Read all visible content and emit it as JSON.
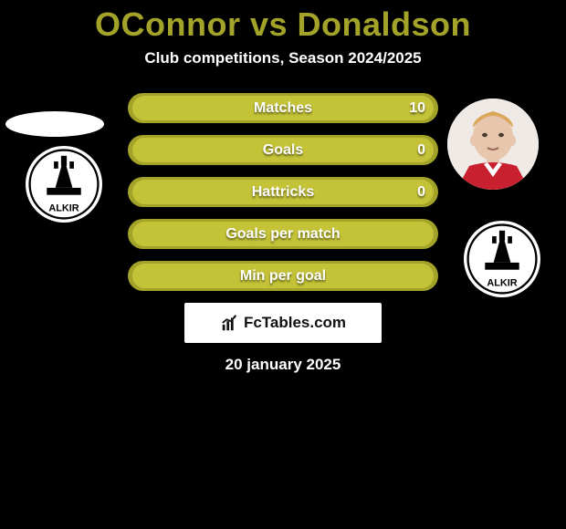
{
  "colors": {
    "title": "#a3a229",
    "bar_outer": "#a3a229",
    "bar_inner": "#c4c338",
    "bg": "#000000"
  },
  "title_parts": {
    "p1": "OConnor",
    "vs": " vs ",
    "p2": "Donaldson"
  },
  "subtitle": "Club competitions, Season 2024/2025",
  "bars": [
    {
      "label": "Matches",
      "value_right": "10",
      "inner_left_pct": 1.5,
      "inner_right_pct": 1.5
    },
    {
      "label": "Goals",
      "value_right": "0",
      "inner_left_pct": 1.5,
      "inner_right_pct": 1.5
    },
    {
      "label": "Hattricks",
      "value_right": "0",
      "inner_left_pct": 1.5,
      "inner_right_pct": 1.5
    },
    {
      "label": "Goals per match",
      "value_right": "",
      "inner_left_pct": 1.5,
      "inner_right_pct": 1.5
    },
    {
      "label": "Min per goal",
      "value_right": "",
      "inner_left_pct": 1.5,
      "inner_right_pct": 1.5
    }
  ],
  "watermark": "FcTables.com",
  "date": "20 january 2025",
  "left_player": {
    "avatar_bg": "#ffffff"
  },
  "right_player": {
    "avatar_bg": "#f0ece9"
  },
  "club": {
    "name": "FALKIRK"
  }
}
